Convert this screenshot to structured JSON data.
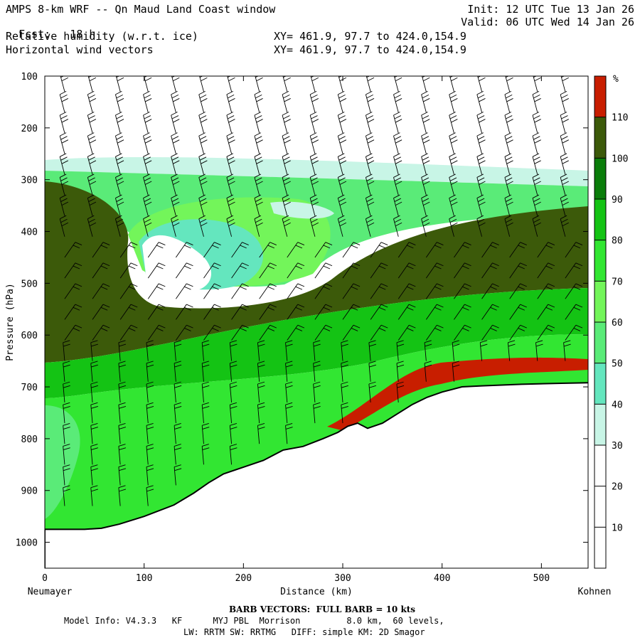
{
  "header": {
    "title": "AMPS 8-km WRF -- Qn Maud Land Coast window",
    "fcst_label": "Fcst:",
    "fcst_value": "18 h",
    "field1": "Relative humidity (w.r.t. ice)",
    "field2": "Horizontal wind vectors",
    "init": "Init: 12 UTC Tue 13 Jan 26",
    "valid": "Valid: 06 UTC Wed 14 Jan 26",
    "xy1": "XY= 461.9, 97.7 to 424.0,154.9",
    "xy2": "XY= 461.9, 97.7 to 424.0,154.9"
  },
  "chart_data": {
    "type": "heatmap",
    "title": "Relative humidity (w.r.t. ice)",
    "xlabel": "Distance (km)",
    "ylabel": "Pressure (hPa)",
    "x_start_label": "Neumayer",
    "x_end_label": "Kohnen",
    "xlim": [
      0,
      547
    ],
    "ylim": [
      1050,
      100
    ],
    "x_ticks": [
      0,
      100,
      200,
      300,
      400,
      500
    ],
    "y_ticks": [
      100,
      200,
      300,
      400,
      500,
      600,
      700,
      800,
      900,
      1000
    ],
    "colorbar_unit": "%",
    "colorbar_ticks": [
      10,
      20,
      30,
      40,
      50,
      60,
      70,
      80,
      90,
      100,
      110
    ],
    "colorbar_levels": [
      {
        "from": 0,
        "to": 30,
        "color": "#ffffff"
      },
      {
        "from": 30,
        "to": 40,
        "color": "#c8f5e6"
      },
      {
        "from": 40,
        "to": 50,
        "color": "#64e6be"
      },
      {
        "from": 50,
        "to": 60,
        "color": "#5aeb78"
      },
      {
        "from": 60,
        "to": 70,
        "color": "#73f55a"
      },
      {
        "from": 70,
        "to": 80,
        "color": "#32e632"
      },
      {
        "from": 80,
        "to": 90,
        "color": "#14c314"
      },
      {
        "from": 90,
        "to": 100,
        "color": "#0a7d0a"
      },
      {
        "from": 100,
        "to": 110,
        "color": "#3c5a0a"
      },
      {
        "from": 110,
        "to": 120,
        "color": "#c81e00"
      }
    ],
    "terrain_surface_hpa": [
      [
        0,
        975
      ],
      [
        40,
        975
      ],
      [
        57,
        973
      ],
      [
        75,
        965
      ],
      [
        100,
        950
      ],
      [
        130,
        928
      ],
      [
        150,
        905
      ],
      [
        165,
        885
      ],
      [
        180,
        868
      ],
      [
        200,
        855
      ],
      [
        220,
        842
      ],
      [
        240,
        822
      ],
      [
        260,
        815
      ],
      [
        280,
        800
      ],
      [
        295,
        788
      ],
      [
        305,
        776
      ],
      [
        315,
        770
      ],
      [
        325,
        780
      ],
      [
        340,
        770
      ],
      [
        355,
        752
      ],
      [
        370,
        734
      ],
      [
        385,
        720
      ],
      [
        400,
        710
      ],
      [
        420,
        700
      ],
      [
        440,
        698
      ],
      [
        480,
        695
      ],
      [
        520,
        693
      ],
      [
        547,
        692
      ]
    ]
  },
  "footer": {
    "barb_note": "BARB VECTORS:  FULL BARB = 10 kts",
    "model_info": "Model Info: V4.3.3   KF      MYJ PBL  Morrison         8.0 km,  60 levels,",
    "model_info2": "LW: RRTM SW: RRTMG   DIFF: simple KM: 2D Smagor"
  }
}
